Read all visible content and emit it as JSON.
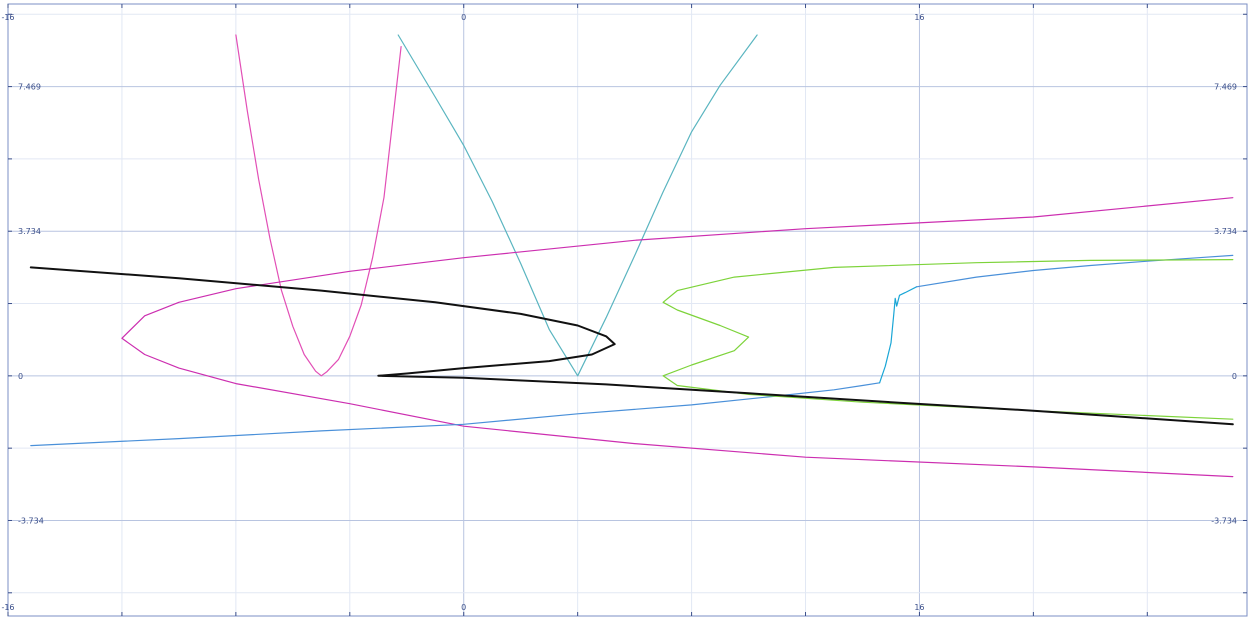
{
  "chart_data": {
    "type": "line",
    "xlim": [
      -16.0,
      27.5
    ],
    "ylim": [
      -6.2,
      9.6
    ],
    "grid": true,
    "x_tick_labels": [
      {
        "value": -16,
        "label": "-16"
      },
      {
        "value": 0,
        "label": "0"
      },
      {
        "value": 16,
        "label": "16"
      }
    ],
    "y_tick_labels": [
      {
        "value": 7.469,
        "label": "7.469"
      },
      {
        "value": 3.734,
        "label": "3.734"
      },
      {
        "value": 0,
        "label": "0"
      },
      {
        "value": -3.734,
        "label": "-3.734"
      }
    ],
    "series": [
      {
        "color": "#e24fb6",
        "width": 1.2,
        "x": [
          -8.0,
          -7.6,
          -7.2,
          -6.8,
          -6.4,
          -6.0,
          -5.6,
          -5.2,
          -5.0,
          -4.8,
          -4.4,
          -4.0,
          -3.6,
          -3.2,
          -2.8,
          -2.2
        ],
        "y": [
          8.8,
          6.84,
          5.08,
          3.54,
          2.21,
          1.28,
          0.55,
          0.12,
          0.0,
          0.11,
          0.42,
          1.02,
          1.83,
          3.05,
          4.61,
          8.5
        ]
      },
      {
        "color": "#5ab5c0",
        "width": 1.2,
        "x": [
          -2.3,
          -1.0,
          0.0,
          1.0,
          2.0,
          3.0,
          4.0,
          5.0,
          6.0,
          7.0,
          8.0,
          9.0,
          10.3
        ],
        "y": [
          8.8,
          7.2,
          5.95,
          4.5,
          2.9,
          1.2,
          0.0,
          1.5,
          3.1,
          4.75,
          6.3,
          7.5,
          8.8
        ]
      },
      {
        "color": "#cc2eb0",
        "width": 1.2,
        "x": [
          27.0,
          20.0,
          12.0,
          6.0,
          0.0,
          -4.0,
          -8.0,
          -10.0,
          -11.2,
          -12.0,
          -11.2,
          -10.0,
          -8.0,
          -4.0,
          0.0,
          6.0,
          12.0,
          20.0,
          27.0
        ],
        "y": [
          4.6,
          4.1,
          3.8,
          3.5,
          3.05,
          2.7,
          2.25,
          1.9,
          1.55,
          0.97,
          0.55,
          0.2,
          -0.2,
          -0.72,
          -1.3,
          -1.75,
          -2.1,
          -2.35,
          -2.6
        ]
      },
      {
        "color": "#4a90d9",
        "width": 1.2,
        "x": [
          -15.2,
          -10.0,
          -5.0,
          0.0,
          4.0,
          8.0,
          11.0,
          13.0,
          14.0,
          14.6
        ],
        "y": [
          -1.8,
          -1.62,
          -1.42,
          -1.25,
          -0.98,
          -0.75,
          -0.52,
          -0.36,
          -0.25,
          -0.18
        ]
      },
      {
        "color": "#1aa6d6",
        "width": 1.2,
        "x": [
          14.6,
          14.8,
          15.0,
          15.1,
          15.15,
          15.2,
          15.3,
          15.5,
          15.9
        ],
        "y": [
          -0.18,
          0.25,
          0.85,
          1.6,
          2.0,
          1.8,
          2.08,
          2.15,
          2.3
        ]
      },
      {
        "color": "#4a90d9",
        "width": 1.2,
        "x": [
          15.9,
          18.0,
          20.0,
          22.0,
          24.0,
          26.0,
          27.0
        ],
        "y": [
          2.3,
          2.55,
          2.72,
          2.85,
          2.96,
          3.06,
          3.11
        ]
      },
      {
        "color": "#7dd33a",
        "width": 1.2,
        "x": [
          27.0,
          22.0,
          18.0,
          13.0,
          9.5,
          7.5,
          7.0,
          7.5,
          9.0,
          10.0,
          9.5,
          8.0,
          7.0,
          7.5,
          10.0,
          14.0,
          20.0,
          27.0
        ],
        "y": [
          3.0,
          2.98,
          2.92,
          2.8,
          2.55,
          2.2,
          1.9,
          1.7,
          1.3,
          1.0,
          0.65,
          0.28,
          0.0,
          -0.25,
          -0.48,
          -0.68,
          -0.9,
          -1.12
        ]
      },
      {
        "color": "#111111",
        "width": 2.0,
        "x": [
          -15.2,
          -10.0,
          -5.0,
          -1.0,
          2.0,
          4.0,
          5.0,
          5.3,
          4.5,
          3.0,
          0.0,
          -2.0,
          -3.0,
          0.0,
          5.0,
          10.0,
          15.0,
          20.0,
          27.0
        ],
        "y": [
          2.8,
          2.52,
          2.2,
          1.9,
          1.6,
          1.3,
          1.02,
          0.82,
          0.55,
          0.38,
          0.2,
          0.06,
          0.0,
          -0.05,
          -0.22,
          -0.45,
          -0.68,
          -0.9,
          -1.25
        ]
      }
    ]
  }
}
